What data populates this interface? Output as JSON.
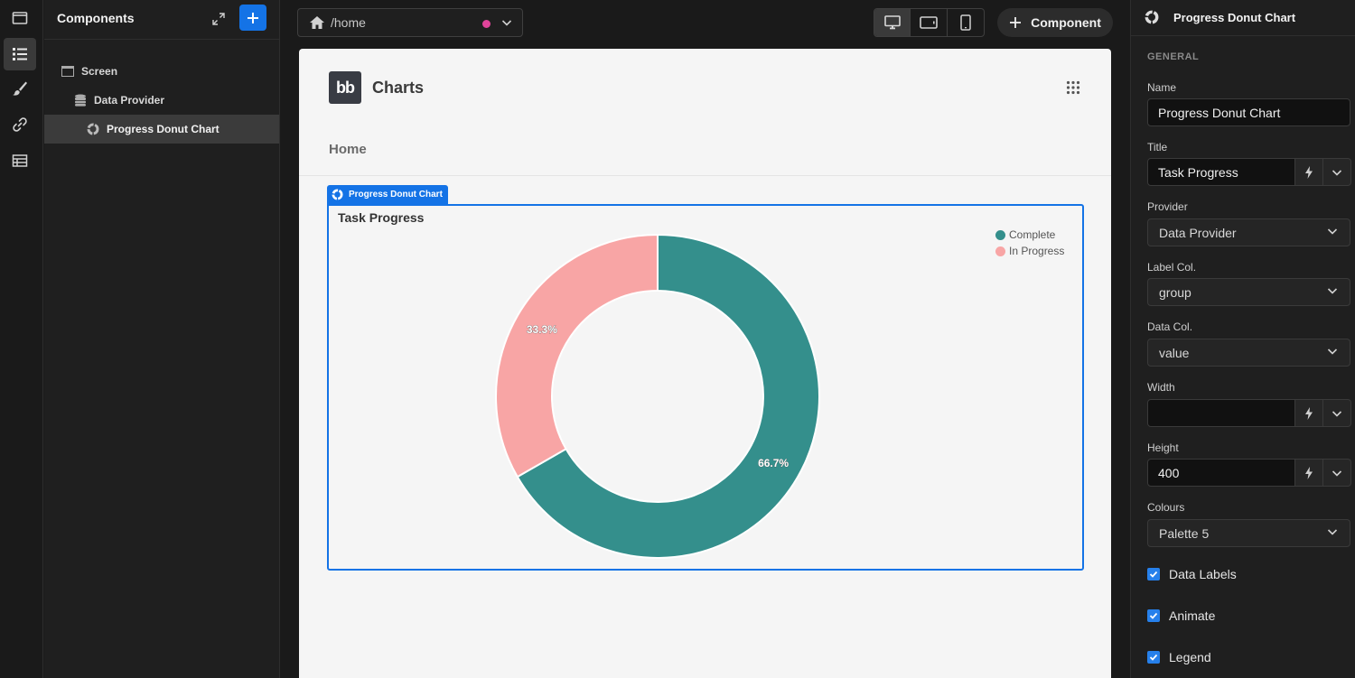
{
  "tree": {
    "title": "Components",
    "items": [
      {
        "label": "Screen",
        "icon": "screen-icon"
      },
      {
        "label": "Data Provider",
        "icon": "database-icon"
      },
      {
        "label": "Progress Donut Chart",
        "icon": "donut-chart-icon"
      }
    ]
  },
  "topbar": {
    "route": "/home",
    "add_component_label": "Component",
    "devices": [
      "desktop-icon",
      "tablet-icon",
      "mobile-icon"
    ]
  },
  "app": {
    "logo_text": "bb",
    "title": "Charts",
    "nav_home": "Home"
  },
  "selection_tag": "Progress Donut Chart",
  "chart_data": {
    "type": "pie",
    "variant": "donut",
    "title": "Task Progress",
    "categories": [
      "Complete",
      "In Progress"
    ],
    "values": [
      66.7,
      33.3
    ],
    "data_labels": [
      "66.7%",
      "33.3%"
    ],
    "colors": [
      "#348f8c",
      "#f8a5a5"
    ],
    "legend": "top-right"
  },
  "panel": {
    "title": "Progress Donut Chart",
    "section": "GENERAL",
    "name_label": "Name",
    "name_value": "Progress Donut Chart",
    "title_label": "Title",
    "title_value": "Task Progress",
    "provider_label": "Provider",
    "provider_value": "Data Provider",
    "label_col_label": "Label Col.",
    "label_col_value": "group",
    "data_col_label": "Data Col.",
    "data_col_value": "value",
    "width_label": "Width",
    "width_value": "",
    "height_label": "Height",
    "height_value": "400",
    "colours_label": "Colours",
    "colours_value": "Palette 5",
    "checks": [
      "Data Labels",
      "Animate",
      "Legend"
    ]
  },
  "colors": {
    "accent": "#1473e6",
    "route_dot": "#e0449a"
  }
}
